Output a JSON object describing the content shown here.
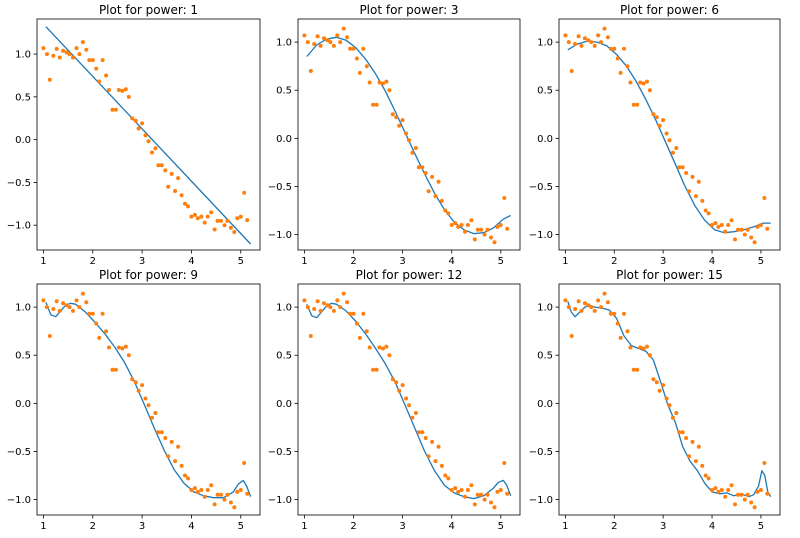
{
  "chart_data": [
    {
      "type": "scatter+line",
      "title": "Plot for power: 1",
      "xlim": [
        0.87,
        5.39
      ],
      "ylim": [
        -1.29,
        1.41
      ],
      "xticks": [
        1,
        2,
        3,
        4,
        5
      ],
      "yticks": [
        -1.0,
        -0.5,
        0.0,
        0.5,
        1.0
      ],
      "xtick_labels": [
        "1",
        "2",
        "3",
        "4",
        "5"
      ],
      "ytick_labels": [
        "−1.0",
        "−0.5",
        "0.0",
        "0.5",
        "1.0"
      ],
      "fit": {
        "x": [
          1.05,
          5.2
        ],
        "y": [
          1.32,
          -1.22
        ]
      }
    },
    {
      "type": "scatter+line",
      "title": "Plot for power: 3",
      "xlim": [
        0.87,
        5.39
      ],
      "ylim": [
        -1.16,
        1.24
      ],
      "xticks": [
        1,
        2,
        3,
        4,
        5
      ],
      "yticks": [
        -1.0,
        -0.5,
        0.0,
        0.5,
        1.0
      ],
      "xtick_labels": [
        "1",
        "2",
        "3",
        "4",
        "5"
      ],
      "ytick_labels": [
        "−1.0",
        "−0.5",
        "0.0",
        "0.5",
        "1.0"
      ],
      "fit": {
        "x": [
          1.05,
          1.25,
          1.45,
          1.65,
          1.85,
          2.05,
          2.25,
          2.45,
          2.65,
          2.85,
          3.05,
          3.25,
          3.45,
          3.65,
          3.85,
          4.05,
          4.25,
          4.45,
          4.65,
          4.85,
          5.05,
          5.2
        ],
        "y": [
          0.85,
          0.97,
          1.03,
          1.05,
          1.02,
          0.94,
          0.82,
          0.67,
          0.49,
          0.28,
          0.06,
          -0.16,
          -0.37,
          -0.57,
          -0.74,
          -0.87,
          -0.95,
          -0.99,
          -0.98,
          -0.93,
          -0.84,
          -0.8
        ]
      }
    },
    {
      "type": "scatter+line",
      "title": "Plot for power: 6",
      "xlim": [
        0.87,
        5.39
      ],
      "ylim": [
        -1.16,
        1.24
      ],
      "xticks": [
        1,
        2,
        3,
        4,
        5
      ],
      "yticks": [
        -1.0,
        -0.5,
        0.0,
        0.5,
        1.0
      ],
      "xtick_labels": [
        "1",
        "2",
        "3",
        "4",
        "5"
      ],
      "ytick_labels": [
        "−1.0",
        "−0.5",
        "0.0",
        "0.5",
        "1.0"
      ],
      "fit": {
        "x": [
          1.05,
          1.25,
          1.45,
          1.65,
          1.85,
          2.05,
          2.25,
          2.45,
          2.65,
          2.85,
          3.05,
          3.25,
          3.45,
          3.65,
          3.85,
          4.05,
          4.25,
          4.45,
          4.65,
          4.85,
          5.05,
          5.2
        ],
        "y": [
          0.92,
          0.98,
          1.01,
          1.0,
          0.96,
          0.87,
          0.75,
          0.59,
          0.4,
          0.19,
          -0.04,
          -0.27,
          -0.5,
          -0.7,
          -0.85,
          -0.95,
          -0.98,
          -0.97,
          -0.95,
          -0.92,
          -0.88,
          -0.88
        ]
      }
    },
    {
      "type": "scatter+line",
      "title": "Plot for power: 9",
      "xlim": [
        0.87,
        5.39
      ],
      "ylim": [
        -1.16,
        1.24
      ],
      "xticks": [
        1,
        2,
        3,
        4,
        5
      ],
      "yticks": [
        -1.0,
        -0.5,
        0.0,
        0.5,
        1.0
      ],
      "xtick_labels": [
        "1",
        "2",
        "3",
        "4",
        "5"
      ],
      "ytick_labels": [
        "−1.0",
        "−0.5",
        "0.0",
        "0.5",
        "1.0"
      ],
      "fit": {
        "x": [
          1.05,
          1.15,
          1.25,
          1.35,
          1.45,
          1.55,
          1.65,
          1.85,
          2.05,
          2.25,
          2.45,
          2.65,
          2.85,
          3.05,
          3.25,
          3.45,
          3.65,
          3.85,
          4.05,
          4.25,
          4.45,
          4.65,
          4.85,
          4.95,
          5.05,
          5.12,
          5.2
        ],
        "y": [
          1.05,
          0.92,
          0.9,
          0.96,
          1.02,
          1.04,
          1.03,
          0.95,
          0.84,
          0.72,
          0.58,
          0.42,
          0.22,
          -0.02,
          -0.26,
          -0.49,
          -0.69,
          -0.83,
          -0.92,
          -0.96,
          -0.98,
          -0.98,
          -0.92,
          -0.84,
          -0.8,
          -0.86,
          -0.97
        ]
      }
    },
    {
      "type": "scatter+line",
      "title": "Plot for power: 12",
      "xlim": [
        0.87,
        5.39
      ],
      "ylim": [
        -1.16,
        1.24
      ],
      "xticks": [
        1,
        2,
        3,
        4,
        5
      ],
      "yticks": [
        -1.0,
        -0.5,
        0.0,
        0.5,
        1.0
      ],
      "xtick_labels": [
        "1",
        "2",
        "3",
        "4",
        "5"
      ],
      "ytick_labels": [
        "−1.0",
        "−0.5",
        "0.0",
        "0.5",
        "1.0"
      ],
      "fit": {
        "x": [
          1.05,
          1.15,
          1.25,
          1.35,
          1.45,
          1.55,
          1.65,
          1.85,
          2.05,
          2.25,
          2.45,
          2.65,
          2.85,
          3.05,
          3.25,
          3.45,
          3.65,
          3.85,
          4.05,
          4.25,
          4.45,
          4.65,
          4.85,
          4.95,
          5.05,
          5.12,
          5.2
        ],
        "y": [
          1.03,
          0.91,
          0.89,
          0.95,
          1.01,
          1.04,
          1.03,
          0.96,
          0.85,
          0.72,
          0.57,
          0.41,
          0.22,
          -0.02,
          -0.26,
          -0.5,
          -0.7,
          -0.85,
          -0.93,
          -0.97,
          -0.99,
          -0.96,
          -0.88,
          -0.82,
          -0.8,
          -0.85,
          -0.96
        ]
      }
    },
    {
      "type": "scatter+line",
      "title": "Plot for power: 15",
      "xlim": [
        0.87,
        5.39
      ],
      "ylim": [
        -1.16,
        1.24
      ],
      "xticks": [
        1,
        2,
        3,
        4,
        5
      ],
      "yticks": [
        -1.0,
        -0.5,
        0.0,
        0.5,
        1.0
      ],
      "xtick_labels": [
        "1",
        "2",
        "3",
        "4",
        "5"
      ],
      "ytick_labels": [
        "−1.0",
        "−0.5",
        "0.0",
        "0.5",
        "1.0"
      ],
      "fit": {
        "x": [
          1.05,
          1.12,
          1.2,
          1.3,
          1.4,
          1.5,
          1.6,
          1.75,
          1.9,
          2.05,
          2.2,
          2.35,
          2.5,
          2.65,
          2.8,
          2.95,
          3.1,
          3.25,
          3.4,
          3.55,
          3.7,
          3.85,
          4.0,
          4.15,
          4.3,
          4.45,
          4.6,
          4.75,
          4.85,
          4.95,
          5.02,
          5.08,
          5.14,
          5.2
        ],
        "y": [
          1.06,
          0.95,
          0.9,
          0.95,
          1.0,
          1.02,
          1.0,
          0.99,
          0.97,
          0.88,
          0.7,
          0.6,
          0.57,
          0.54,
          0.45,
          0.22,
          -0.02,
          -0.2,
          -0.45,
          -0.6,
          -0.7,
          -0.83,
          -0.92,
          -0.94,
          -0.93,
          -0.96,
          -0.94,
          -0.97,
          -0.95,
          -0.86,
          -0.7,
          -0.75,
          -0.92,
          -0.97
        ]
      }
    }
  ],
  "scatter": {
    "x": [
      1.0,
      1.07,
      1.13,
      1.2,
      1.27,
      1.33,
      1.4,
      1.47,
      1.53,
      1.6,
      1.67,
      1.73,
      1.8,
      1.87,
      1.93,
      2.0,
      2.07,
      2.13,
      2.2,
      2.27,
      2.33,
      2.4,
      2.47,
      2.53,
      2.6,
      2.67,
      2.73,
      2.8,
      2.87,
      2.93,
      3.0,
      3.07,
      3.13,
      3.2,
      3.27,
      3.33,
      3.4,
      3.47,
      3.53,
      3.6,
      3.67,
      3.73,
      3.8,
      3.87,
      3.93,
      4.0,
      4.07,
      4.13,
      4.2,
      4.27,
      4.33,
      4.4,
      4.47,
      4.53,
      4.6,
      4.67,
      4.73,
      4.8,
      4.87,
      4.93,
      5.0,
      5.07,
      5.13
    ],
    "y": [
      1.07,
      1.0,
      0.7,
      0.98,
      1.06,
      0.96,
      1.04,
      1.02,
      1.0,
      0.96,
      1.07,
      1.0,
      1.14,
      1.05,
      0.93,
      0.93,
      0.83,
      0.68,
      0.93,
      0.75,
      0.58,
      0.35,
      0.35,
      0.58,
      0.57,
      0.59,
      0.5,
      0.25,
      0.22,
      0.13,
      0.19,
      0.05,
      -0.02,
      -0.15,
      -0.1,
      -0.3,
      -0.3,
      -0.36,
      -0.55,
      -0.4,
      -0.6,
      -0.45,
      -0.65,
      -0.75,
      -0.78,
      -0.9,
      -0.88,
      -0.92,
      -0.9,
      -0.97,
      -0.9,
      -0.85,
      -1.05,
      -0.95,
      -0.95,
      -1.0,
      -0.95,
      -1.03,
      -1.08,
      -0.92,
      -0.9,
      -0.62,
      -0.94
    ]
  },
  "style": {
    "scatter_color": "#ff7f0e",
    "line_color": "#1f77b4",
    "axes_color": "#000000"
  }
}
